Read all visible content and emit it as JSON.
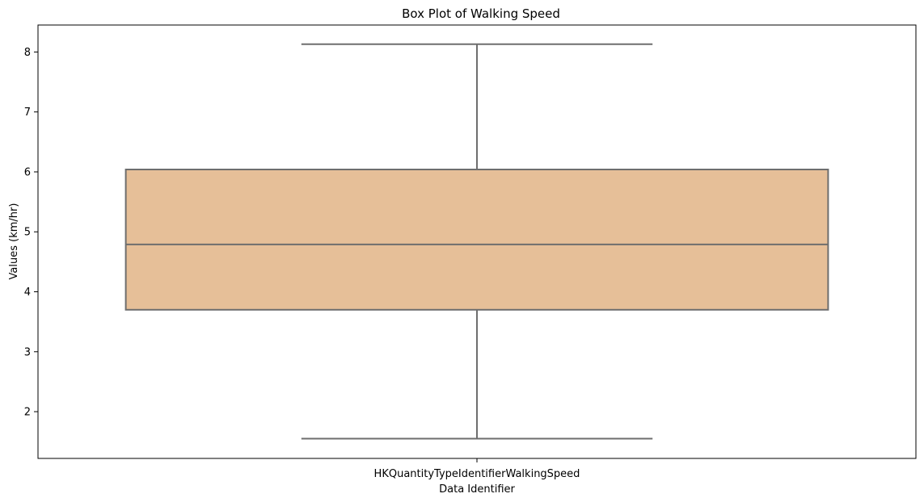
{
  "chart_data": {
    "type": "box",
    "title": "Box Plot of Walking Speed",
    "xlabel": "Data Identifier",
    "ylabel": "Values (km/hr)",
    "categories": [
      "HKQuantityTypeIdentifierWalkingSpeed"
    ],
    "boxes": [
      {
        "category": "HKQuantityTypeIdentifierWalkingSpeed",
        "whisker_low": 1.55,
        "q1": 3.7,
        "median": 4.79,
        "q3": 6.04,
        "whisker_high": 8.13
      }
    ],
    "ylim": [
      1.22,
      8.45
    ],
    "yticks": [
      2,
      3,
      4,
      5,
      6,
      7,
      8
    ],
    "grid": false,
    "legend": "none",
    "box_color": "#e6bf98",
    "line_color": "#6e6e6e"
  }
}
